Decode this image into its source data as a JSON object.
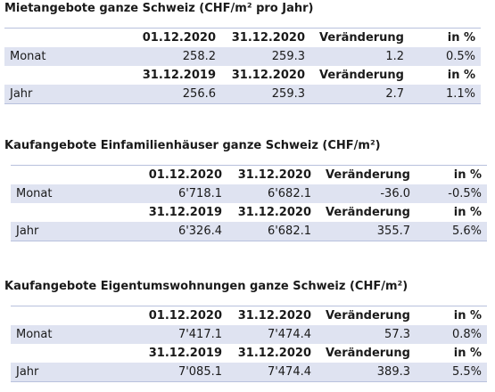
{
  "tables": [
    {
      "title": "Mietangebote ganze Schweiz (CHF/m² pro Jahr)",
      "rows": [
        {
          "type": "header",
          "cells": [
            "",
            "01.12.2020",
            "31.12.2020",
            "Veränderung",
            "in %"
          ]
        },
        {
          "type": "data",
          "cells": [
            "Monat",
            "258.2",
            "259.3",
            "1.2",
            "0.5%"
          ]
        },
        {
          "type": "header",
          "cells": [
            "",
            "31.12.2019",
            "31.12.2020",
            "Veränderung",
            "in %"
          ]
        },
        {
          "type": "data",
          "cells": [
            "Jahr",
            "256.6",
            "259.3",
            "2.7",
            "1.1%"
          ]
        }
      ]
    },
    {
      "title": "Kaufangebote Einfamilienhäuser ganze Schweiz (CHF/m²)",
      "rows": [
        {
          "type": "header",
          "cells": [
            "",
            "01.12.2020",
            "31.12.2020",
            "Veränderung",
            "in %"
          ]
        },
        {
          "type": "data",
          "cells": [
            "Monat",
            "6'718.1",
            "6'682.1",
            "-36.0",
            "-0.5%"
          ]
        },
        {
          "type": "header",
          "cells": [
            "",
            "31.12.2019",
            "31.12.2020",
            "Veränderung",
            "in %"
          ]
        },
        {
          "type": "data",
          "cells": [
            "Jahr",
            "6'326.4",
            "6'682.1",
            "355.7",
            "5.6%"
          ]
        }
      ]
    },
    {
      "title": "Kaufangebote Eigentumswohnungen ganze Schweiz (CHF/m²)",
      "rows": [
        {
          "type": "header",
          "cells": [
            "",
            "01.12.2020",
            "31.12.2020",
            "Veränderung",
            "in %"
          ]
        },
        {
          "type": "data",
          "cells": [
            "Monat",
            "7'417.1",
            "7'474.4",
            "57.3",
            "0.8%"
          ]
        },
        {
          "type": "header",
          "cells": [
            "",
            "31.12.2019",
            "31.12.2020",
            "Veränderung",
            "in %"
          ]
        },
        {
          "type": "data",
          "cells": [
            "Jahr",
            "7'085.1",
            "7'474.4",
            "389.3",
            "5.5%"
          ]
        }
      ]
    }
  ]
}
